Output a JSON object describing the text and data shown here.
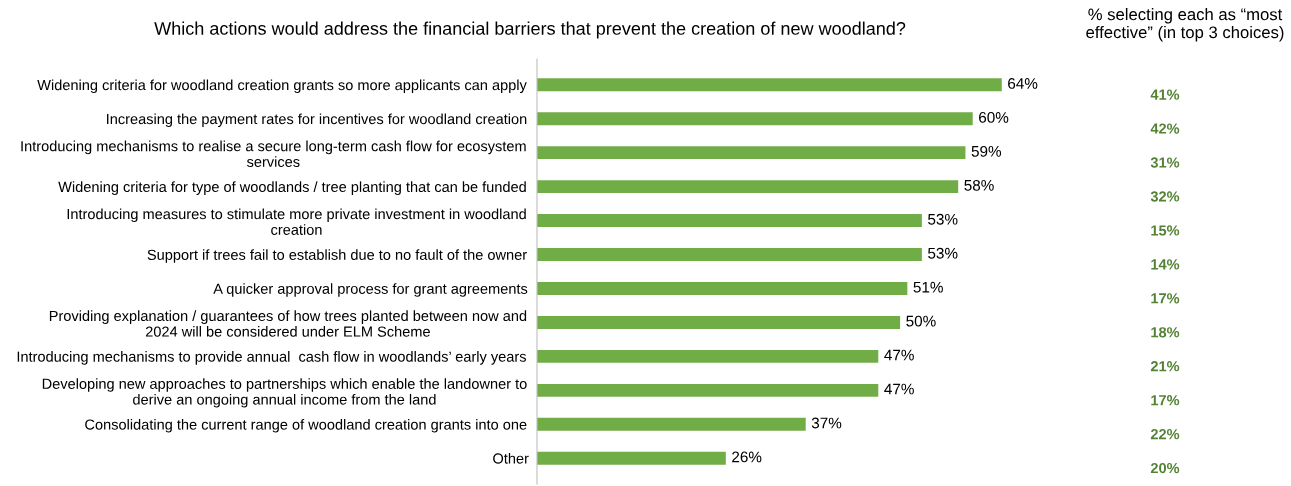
{
  "chart_data": {
    "type": "bar",
    "orientation": "horizontal",
    "title": "Which actions would address the financial barriers that prevent the creation of new woodland?",
    "categories": [
      "Widening criteria for woodland creation grants so more applicants can apply",
      "Increasing the payment rates for incentives for woodland creation",
      "Introducing mechanisms to realise a secure long-term cash flow for ecosystem\nservices",
      "Widening criteria for type of woodlands / tree planting that can be funded",
      "Introducing measures to stimulate more private investment in woodland\ncreation",
      "Support if trees fail to establish due to no fault of the owner",
      "A quicker approval process for grant agreements",
      "Providing explanation / guarantees of how trees planted between now and\n2024 will be considered under ELM Scheme",
      "Introducing mechanisms to provide annual  cash flow in woodlands’ early years",
      "Developing new approaches to partnerships which enable the landowner to\nderive an ongoing annual income from the land",
      "Consolidating the current range of woodland creation grants into one",
      "Other"
    ],
    "values": [
      64,
      60,
      59,
      58,
      53,
      53,
      51,
      50,
      47,
      47,
      37,
      26
    ],
    "value_labels": [
      "64%",
      "60%",
      "59%",
      "58%",
      "53%",
      "53%",
      "51%",
      "50%",
      "47%",
      "47%",
      "37%",
      "26%"
    ],
    "color": "#70ad47",
    "grid": false,
    "legend": false,
    "annotations": [
      "% selecting each as “most\neffective” (in top 3 choices)",
      "41%",
      "42%",
      "31%",
      "32%",
      "15%",
      "14%",
      "17%",
      "18%",
      "21%",
      "17%",
      "22%",
      "20%"
    ]
  }
}
